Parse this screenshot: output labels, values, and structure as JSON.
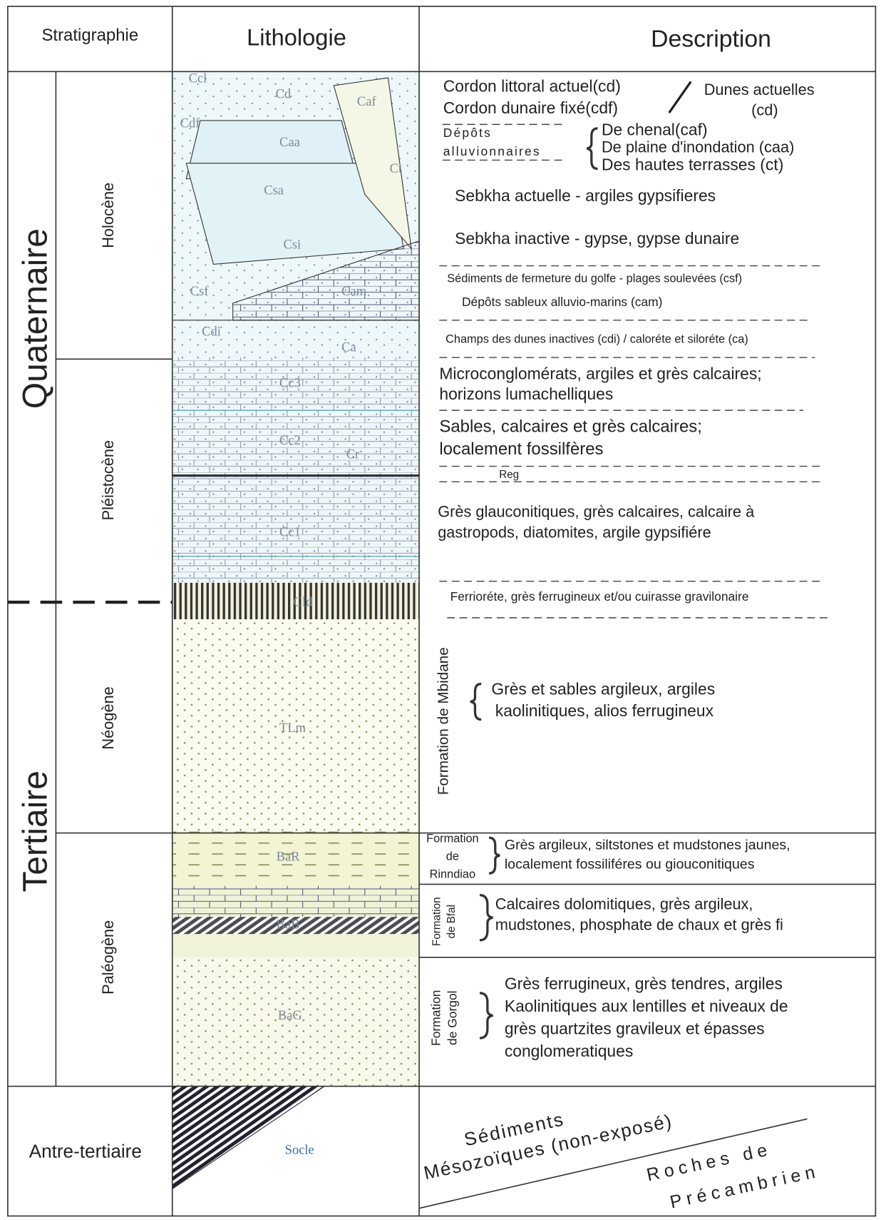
{
  "header": {
    "stratigraphy": "Stratigraphie",
    "lithology": "Lithologie",
    "description": "Description"
  },
  "eras": [
    "Quaternaire",
    "Tertiaire",
    "Antre-tertiaire"
  ],
  "periods": [
    "Holocène",
    "Pléistocène",
    "Néogène",
    "Paléogène"
  ],
  "lithology_codes": [
    "Ccl",
    "Cd",
    "Caf",
    "Cdf",
    "Caa",
    "Ct",
    "Csa",
    "Csi",
    "Csf",
    "Cam",
    "Cdi",
    "Ca",
    "Cc3",
    "Cc2",
    "Cr",
    "Cc1",
    "Cld",
    "TLm",
    "BaR",
    "BaB",
    "BaG",
    "Socle"
  ],
  "descriptions": [
    [
      "Cordon littoral actuel(cd)"
    ],
    [
      "Dunes actuelles",
      "(cd)"
    ],
    [
      "Cordon dunaire fixé(cdf)"
    ],
    [
      "Dépôts",
      "alluvionnaires"
    ],
    [
      "De chenal(caf)",
      "De plaine d'inondation (caa)",
      "Des hautes terrasses (ct)"
    ],
    [
      "Sebkha actuelle - argiles gypsifieres"
    ],
    [
      "Sebkha inactive - gypse, gypse dunaire"
    ],
    [
      "Sédiments de fermeture du golfe - plages soulevées (csf)"
    ],
    [
      "Dépôts sableux alluvio-marins (cam)"
    ],
    [
      "Champs des dunes inactives (cdi) / caloréte et siloréte (ca)"
    ],
    [
      "Microconglomérats, argiles et grès calcaires;",
      "horizons lumachelliques"
    ],
    [
      "Sables, calcaires et grès calcaires;",
      "localement fossilfères"
    ],
    [
      "Reg"
    ],
    [
      "Grès glauconitiques, grès calcaires, calcaire à",
      "gastropods, diatomites, argile gypsifiére"
    ],
    [
      "Ferrioréte, grès ferrugineux et/ou cuirasse gravilonaire"
    ],
    [
      "Grès et sables argileux, argiles",
      "kaolinitiques, alios ferrugineux"
    ],
    [
      "Grès argileux, siltstones et mudstones jaunes,",
      "localement fossiliféres ou giouconitiques"
    ],
    [
      "Calcaires dolomitiques, grès argileux,",
      "mudstones, phosphate de chaux et grès fi"
    ],
    [
      "Grès ferrugineux, grès tendres, argiles",
      "Kaolinitiques aux lentilles et niveaux de",
      "grès quartzites gravileux et épasses",
      "conglomeratiques"
    ]
  ],
  "formations": [
    [
      "Formation de Mbidane"
    ],
    [
      "Formation",
      "de",
      "Rinndiao"
    ],
    [
      "Formation",
      "de Bfal"
    ],
    [
      "Formation",
      "de Gorgol"
    ]
  ],
  "basement": [
    [
      "Sédiments",
      "Mésozoïques (non-exposé)"
    ],
    [
      "Roches de",
      "Précambrien"
    ]
  ]
}
